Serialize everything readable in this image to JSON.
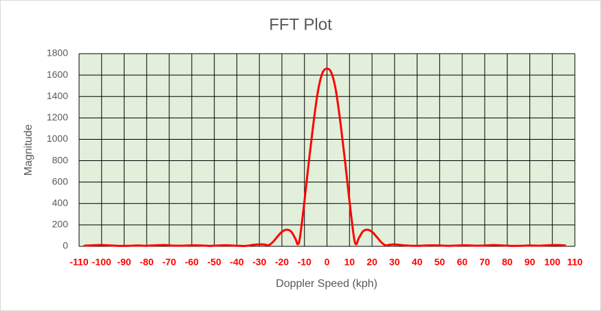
{
  "chart_data": {
    "type": "line",
    "title": "FFT Plot",
    "x_label": "Doppler Speed (kph)",
    "y_label": "Magnitude",
    "x": [
      -108,
      -104,
      -100,
      -96,
      -92,
      -88,
      -84,
      -80,
      -76,
      -72,
      -68,
      -64,
      -60,
      -56,
      -52,
      -48,
      -44,
      -40,
      -36,
      -32,
      -28,
      -26,
      -24,
      -22,
      -20,
      -18,
      -16,
      -14,
      -13,
      -12,
      -10,
      -8,
      -6,
      -4,
      -2,
      0,
      2,
      4,
      6,
      8,
      10,
      12,
      13,
      14,
      16,
      18,
      20,
      22,
      24,
      26,
      28,
      30,
      34,
      38,
      42,
      46,
      50,
      54,
      58,
      62,
      66,
      70,
      74,
      78,
      82,
      86,
      90,
      94,
      98,
      102,
      106
    ],
    "values": [
      5,
      10,
      12,
      8,
      4,
      5,
      8,
      5,
      10,
      12,
      6,
      6,
      10,
      8,
      4,
      8,
      10,
      5,
      4,
      15,
      18,
      10,
      40,
      90,
      135,
      155,
      140,
      70,
      20,
      80,
      420,
      800,
      1150,
      1450,
      1620,
      1660,
      1620,
      1450,
      1150,
      800,
      420,
      80,
      20,
      70,
      140,
      155,
      135,
      90,
      40,
      10,
      15,
      18,
      10,
      5,
      6,
      10,
      8,
      5,
      8,
      10,
      6,
      8,
      12,
      8,
      4,
      5,
      8,
      6,
      10,
      12,
      8
    ],
    "color": "#ff0000",
    "plot_background": "#e2efda",
    "grid": true,
    "xtick_color": "#ff0000",
    "xlim": [
      -110,
      110
    ],
    "xticks": [
      -110,
      -100,
      -90,
      -80,
      -70,
      -60,
      -50,
      -40,
      -30,
      -20,
      -10,
      0,
      10,
      20,
      30,
      40,
      50,
      60,
      70,
      80,
      90,
      100,
      110
    ],
    "ylim": [
      0,
      1800
    ],
    "yticks": [
      0,
      200,
      400,
      600,
      800,
      1000,
      1200,
      1400,
      1600,
      1800
    ]
  }
}
